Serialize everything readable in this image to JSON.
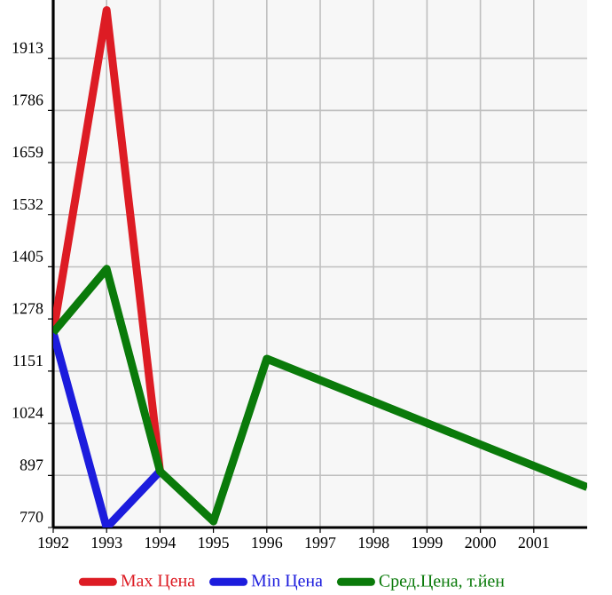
{
  "chart_data": {
    "type": "line",
    "xlim": [
      1992,
      2002
    ],
    "ylim": [
      770,
      2055
    ],
    "xticks": [
      1992,
      1993,
      1994,
      1995,
      1996,
      1997,
      1998,
      1999,
      2000,
      2001
    ],
    "yticks": [
      770,
      897,
      1024,
      1151,
      1278,
      1405,
      1532,
      1659,
      1786,
      1913
    ],
    "grid": true,
    "legend": "bottom",
    "marker": "none",
    "line_style": "solid",
    "series": [
      {
        "name": "Max Цена",
        "color": "#dd1c24",
        "x": [
          1992,
          1993,
          1994
        ],
        "values": [
          1245,
          2030,
          907
        ]
      },
      {
        "name": "Min Цена",
        "color": "#1c1cdd",
        "x": [
          1992,
          1993,
          1994
        ],
        "values": [
          1245,
          770,
          907
        ]
      },
      {
        "name": "Сред.Цена, т.йен",
        "color": "#0a7a0a",
        "x": [
          1992,
          1993,
          1994,
          1995,
          1996,
          2002
        ],
        "values": [
          1245,
          1400,
          907,
          785,
          1181,
          868
        ]
      }
    ]
  }
}
